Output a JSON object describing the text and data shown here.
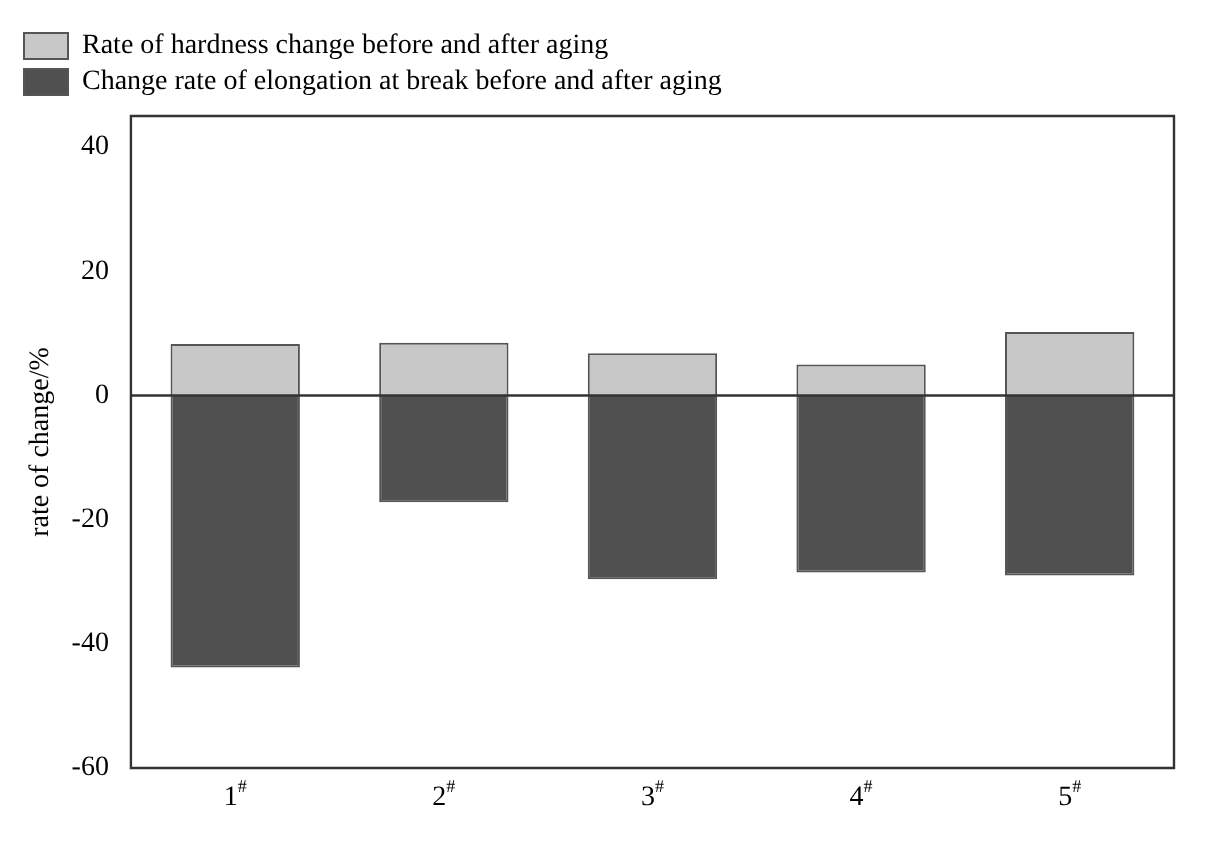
{
  "chart_data": {
    "type": "bar",
    "ylabel": "rate of change/%",
    "categories": [
      "1$^{#}$",
      "2$^{#}$",
      "3$^{#}$",
      "4$^{#}$",
      "5$^{#}$"
    ],
    "series": [
      {
        "name": "Rate of hardness change before and after aging",
        "color": "#c8c8c8",
        "values": [
          8.3,
          8.5,
          6.8,
          5.0,
          10.2
        ]
      },
      {
        "name": "Change rate of elongation at break before and after aging",
        "color": "#505050",
        "values": [
          -43.8,
          -17.2,
          -29.6,
          -28.5,
          -29.0
        ]
      }
    ],
    "stacked": true,
    "ylim": [
      -60,
      45
    ],
    "yticks": [
      -60,
      -40,
      -20,
      0,
      20,
      40
    ],
    "grid": false,
    "ref_lines": [
      {
        "axis": "y",
        "value": 0,
        "color": "#333333"
      }
    ],
    "legend": "top left"
  }
}
